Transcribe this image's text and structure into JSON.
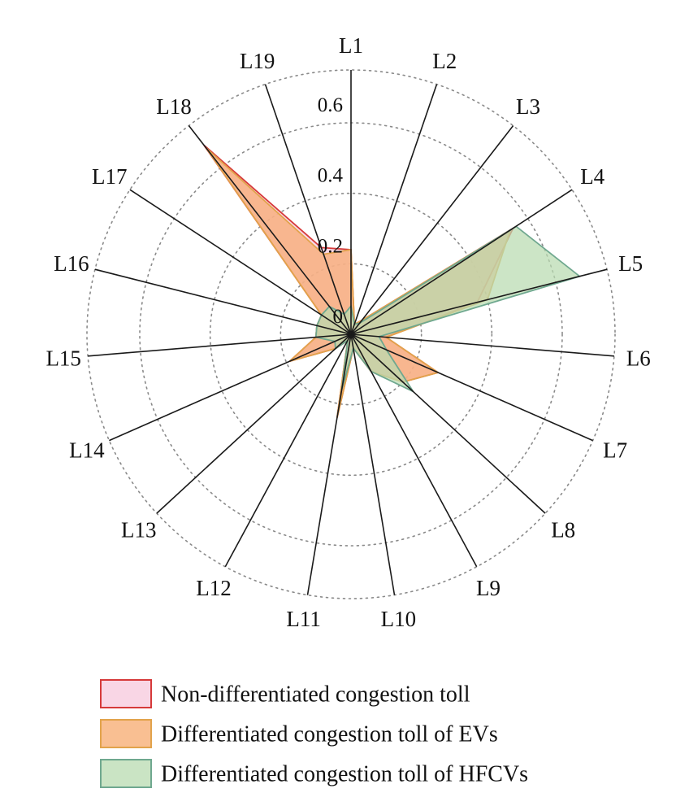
{
  "chart_data": {
    "type": "radar",
    "axes": [
      "L1",
      "L2",
      "L3",
      "L4",
      "L5",
      "L6",
      "L7",
      "L8",
      "L9",
      "L10",
      "L11",
      "L12",
      "L13",
      "L14",
      "L15",
      "L16",
      "L17",
      "L18",
      "L19"
    ],
    "radial_ticks": [
      "0",
      "0.2",
      "0.4",
      "0.6"
    ],
    "radial_tick_values": [
      0,
      0.2,
      0.4,
      0.6
    ],
    "rmax": 0.75,
    "grid": "dotted circles",
    "legend_position": "bottom-left",
    "series": [
      {
        "name": "Non-differentiated congestion toll",
        "fill": "#f7c8dc",
        "stroke": "#d63a3a",
        "values": [
          0.24,
          0.03,
          0.05,
          0.55,
          0.37,
          0.1,
          0.27,
          0.2,
          0.12,
          0.04,
          0.24,
          0.02,
          0.06,
          0.19,
          0.1,
          0.1,
          0.1,
          0.68,
          0.26
        ]
      },
      {
        "name": "Differentiated congestion toll of EVs",
        "fill": "#f7a96d",
        "stroke": "#e2a34b",
        "values": [
          0.24,
          0.03,
          0.05,
          0.54,
          0.4,
          0.1,
          0.27,
          0.2,
          0.12,
          0.04,
          0.24,
          0.02,
          0.06,
          0.19,
          0.1,
          0.1,
          0.1,
          0.67,
          0.24
        ]
      },
      {
        "name": "Differentiated congestion toll of HFCVs",
        "fill": "#b8dbb0",
        "stroke": "#6fa88f",
        "values": [
          0.08,
          0.03,
          0.04,
          0.56,
          0.67,
          0.08,
          0.11,
          0.24,
          0.12,
          0.04,
          0.16,
          0.02,
          0.06,
          0.05,
          0.1,
          0.1,
          0.1,
          0.1,
          0.06
        ]
      }
    ]
  }
}
